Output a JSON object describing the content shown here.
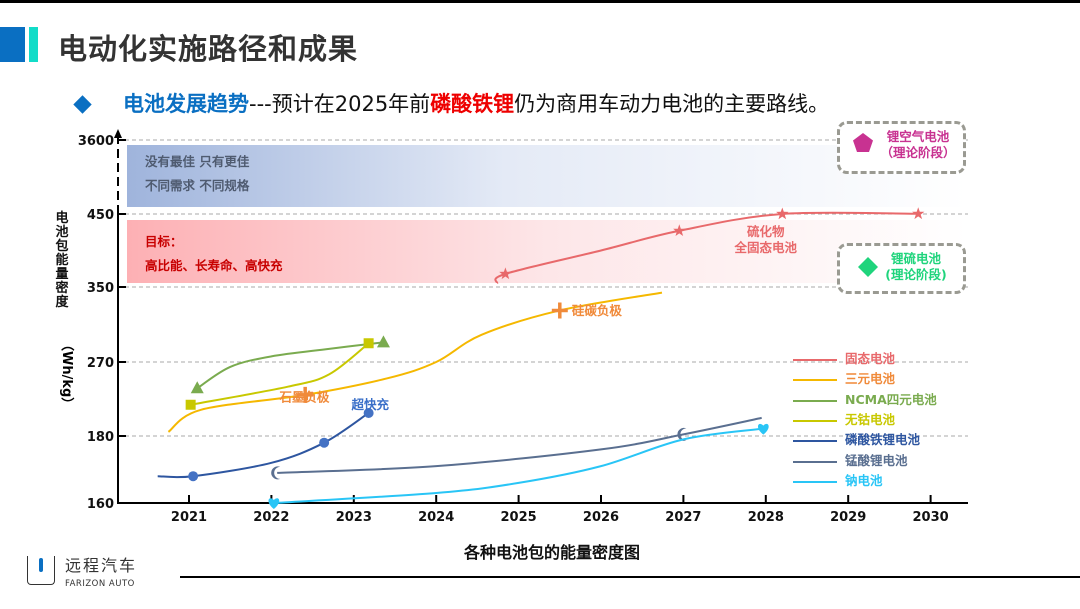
{
  "header": {
    "title": "电动化实施路径和成果",
    "subtitle_highlight": "电池发展趋势",
    "subtitle_part1": "---预计在2025年前",
    "subtitle_red": "磷酸铁锂",
    "subtitle_part2": "仍为商用车动力电池的主要路线。",
    "accent_color": "#0a6fc2",
    "accent2_color": "#12dcc8"
  },
  "bands": {
    "blue_line1": "没有最佳 只有更佳",
    "blue_line2": "不同需求 不同规格",
    "red_line1": "目标：",
    "red_line2": "高比能、长寿命、高快充"
  },
  "theory_boxes": [
    {
      "label1": "锂空气电池",
      "label2": "（理论阶段）",
      "color": "#c83291",
      "icon": "pentagon-icon"
    },
    {
      "label1": "锂硫电池",
      "label2": "(理论阶段)",
      "color": "#1fd47c",
      "icon": "diamond-icon"
    }
  ],
  "chart_data": {
    "type": "line",
    "title": "各种电池包的能量密度图",
    "ylabel": "电池包能量密度",
    "yunit": "（Wh/kg）",
    "x_ticks": [
      "2021",
      "2022",
      "2023",
      "2024",
      "2025",
      "2026",
      "2027",
      "2028",
      "2029",
      "2030"
    ],
    "y_ticks": [
      160,
      180,
      270,
      350,
      450,
      3600
    ],
    "y_scale": "non-uniform (equally spaced tick levels)",
    "xlim": [
      2020.4,
      2030.4
    ],
    "grid": "horizontal dashed at y ticks",
    "legend_position": "right",
    "series": [
      {
        "name": "固态电池",
        "color": "#e8696b",
        "marker": "star",
        "points": [
          [
            2024.74,
            355
          ],
          [
            2024.84,
            368
          ],
          [
            2026.0,
            400
          ],
          [
            2026.95,
            427
          ],
          [
            2028.2,
            452
          ],
          [
            2029.85,
            458
          ]
        ],
        "marker_points": [
          [
            2024.84,
            368
          ],
          [
            2026.95,
            427
          ],
          [
            2028.2,
            452
          ],
          [
            2029.85,
            458
          ]
        ]
      },
      {
        "name": "三元电池",
        "color": "#f5b800",
        "marker_color": "#f08a3a",
        "marker": "plus",
        "points": [
          [
            2020.75,
            185
          ],
          [
            2021.15,
            212
          ],
          [
            2022.41,
            230
          ],
          [
            2023.4,
            250
          ],
          [
            2024.0,
            270
          ],
          [
            2024.55,
            299
          ],
          [
            2025.5,
            325
          ],
          [
            2026.74,
            344
          ]
        ],
        "marker_points": [
          [
            2022.41,
            230
          ],
          [
            2025.5,
            325
          ]
        ]
      },
      {
        "name": "NCMA四元电池",
        "color": "#7aab4f",
        "marker": "triangle",
        "points": [
          [
            2021.1,
            238
          ],
          [
            2021.5,
            264
          ],
          [
            2022.0,
            276
          ],
          [
            2022.7,
            284
          ],
          [
            2023.36,
            291
          ]
        ],
        "marker_points": [
          [
            2021.1,
            238
          ],
          [
            2023.36,
            291
          ]
        ]
      },
      {
        "name": "无钴电池",
        "color": "#c8c800",
        "marker": "square",
        "points": [
          [
            2021.02,
            218
          ],
          [
            2022.2,
            240
          ],
          [
            2022.7,
            255
          ],
          [
            2023.18,
            290
          ]
        ],
        "marker_points": [
          [
            2021.02,
            218
          ],
          [
            2023.18,
            290
          ]
        ]
      },
      {
        "name": "磷酸铁锂电池",
        "color": "#2e56a0",
        "marker_color": "#4472c4",
        "marker": "circle",
        "points": [
          [
            2020.62,
            168
          ],
          [
            2021.05,
            168
          ],
          [
            2022.0,
            172
          ],
          [
            2022.64,
            178
          ],
          [
            2023.18,
            208
          ]
        ],
        "marker_points": [
          [
            2021.05,
            168
          ],
          [
            2022.64,
            178
          ],
          [
            2023.18,
            208
          ]
        ]
      },
      {
        "name": "锰酸锂电池",
        "color": "#5a6f90",
        "marker": "moon",
        "points": [
          [
            2022.07,
            169
          ],
          [
            2024.0,
            171
          ],
          [
            2026.0,
            176
          ],
          [
            2027.0,
            182
          ],
          [
            2027.95,
            202
          ]
        ],
        "marker_points": [
          [
            2022.07,
            169
          ],
          [
            2027.0,
            182
          ]
        ]
      },
      {
        "name": "钠电池",
        "color": "#29c5f6",
        "marker": "heart",
        "points": [
          [
            2022.03,
            160
          ],
          [
            2024.0,
            163
          ],
          [
            2025.0,
            166
          ],
          [
            2026.0,
            171
          ],
          [
            2027.0,
            179
          ],
          [
            2027.97,
            189
          ]
        ],
        "marker_points": [
          [
            2022.03,
            160
          ],
          [
            2027.97,
            189
          ]
        ]
      }
    ],
    "annotations": [
      {
        "text": "超快充",
        "color": "#3a6fc8",
        "at": [
          2023.2,
          213
        ]
      },
      {
        "text": "石墨负极",
        "color": "#f08a3a",
        "at": [
          2022.4,
          222
        ]
      },
      {
        "text": "硅碳负极",
        "color": "#f08a3a",
        "at": [
          2025.95,
          320
        ]
      },
      {
        "text": "硫化物",
        "color": "#e8696b",
        "at": [
          2028.0,
          420
        ]
      },
      {
        "text": "全固态电池",
        "color": "#e8696b",
        "at": [
          2028.0,
          398
        ]
      }
    ]
  },
  "logo": {
    "cn": "远程汽车",
    "en": "FARIZON AUTO"
  }
}
